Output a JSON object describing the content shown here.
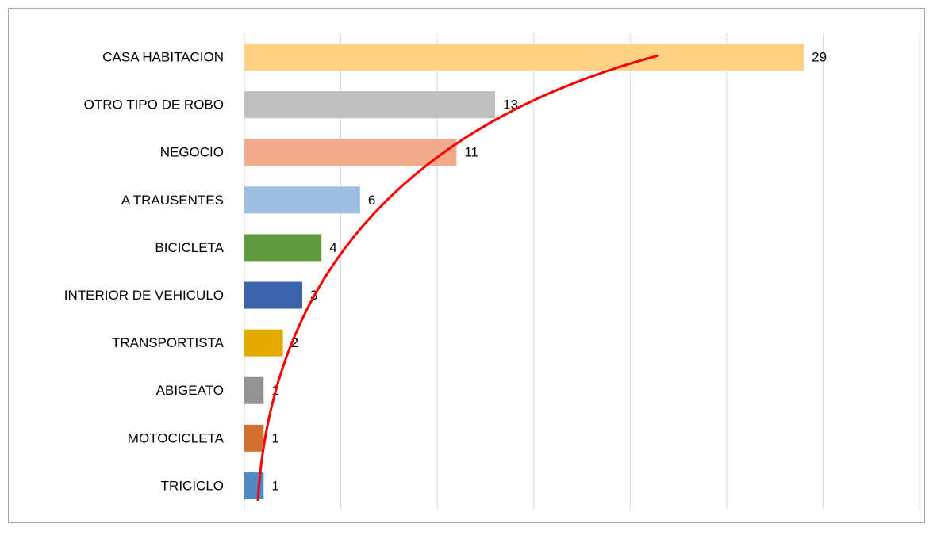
{
  "chart_data": {
    "type": "barh",
    "categories": [
      "CASA HABITACION",
      "OTRO TIPO DE ROBO",
      "NEGOCIO",
      "A TRAUSENTES",
      "BICICLETA",
      "INTERIOR DE VEHICULO",
      "TRANSPORTISTA",
      "ABIGEATO",
      "MOTOCICLETA",
      "TRICICLO"
    ],
    "values": [
      29,
      13,
      11,
      6,
      4,
      3,
      2,
      1,
      1,
      1
    ],
    "colors": [
      "#ffd185",
      "#bfbfbf",
      "#f2a98c",
      "#9dbde1",
      "#629a3e",
      "#3b64ad",
      "#e3ab00",
      "#939393",
      "#d4702f",
      "#4f8ac4"
    ],
    "xlim": [
      0,
      35
    ],
    "xticks": [
      0,
      5,
      10,
      15,
      20,
      25,
      30,
      35
    ],
    "grid": true
  }
}
